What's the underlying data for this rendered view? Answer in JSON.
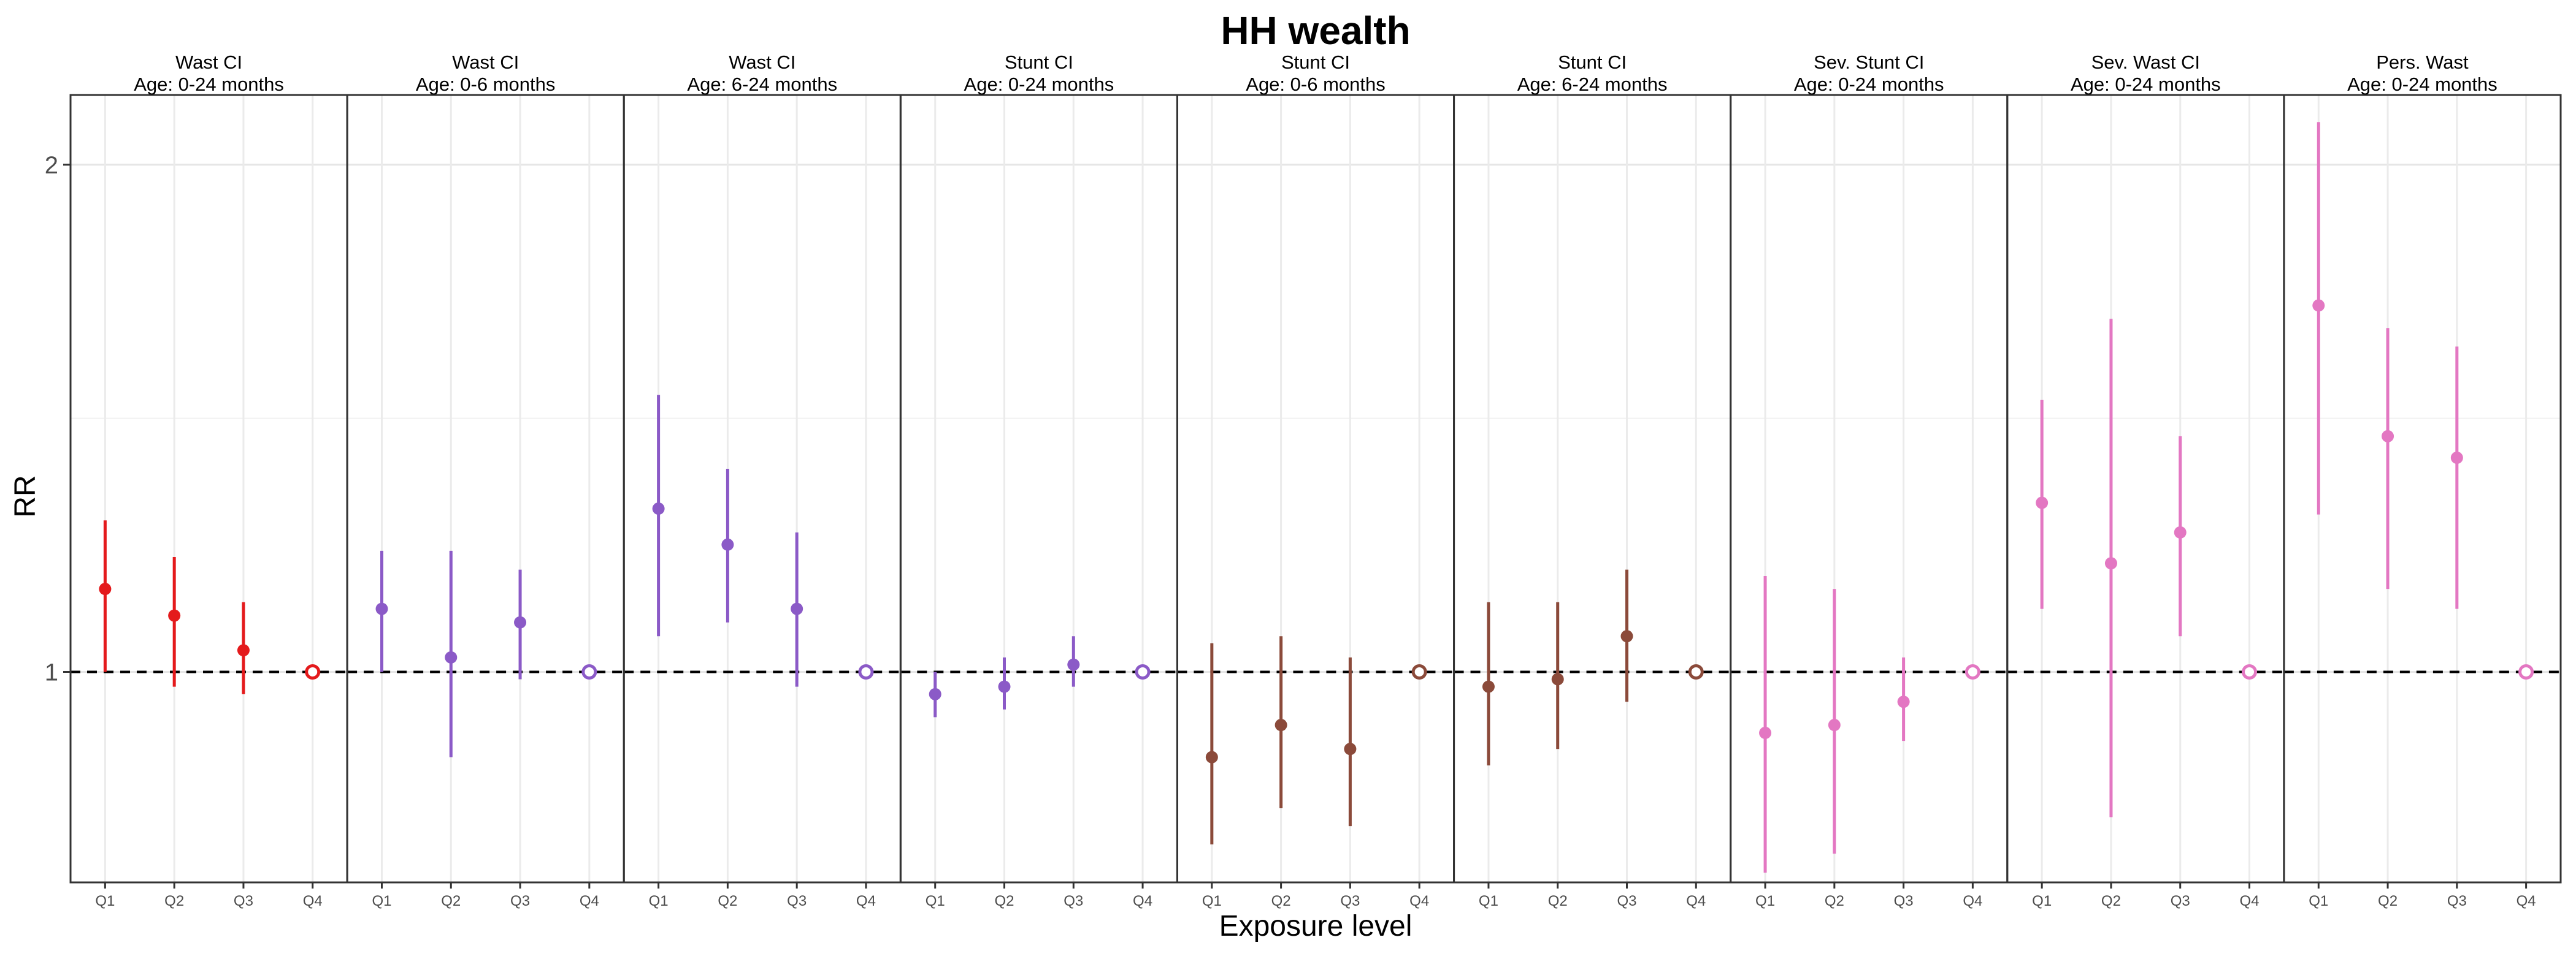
{
  "chart_data": {
    "type": "scatter",
    "title": "HH wealth",
    "xlabel": "Exposure level",
    "ylabel": "RR",
    "scale": "log",
    "ylim": [
      0.75,
      2.2
    ],
    "yticks": [
      1,
      2
    ],
    "ytick_labels": [
      "1",
      "2"
    ],
    "categories": [
      "Q1",
      "Q2",
      "Q3",
      "Q4"
    ],
    "reference_line": 1,
    "reference_category": "Q4",
    "grid": true,
    "panels": [
      {
        "line1": "Wast CI",
        "line2": "Age: 0-24 months",
        "color": "#e41a1c",
        "points": [
          {
            "x": "Q1",
            "rr": 1.12,
            "lower": 1.0,
            "upper": 1.23
          },
          {
            "x": "Q2",
            "rr": 1.08,
            "lower": 0.98,
            "upper": 1.17
          },
          {
            "x": "Q3",
            "rr": 1.03,
            "lower": 0.97,
            "upper": 1.1
          },
          {
            "x": "Q4",
            "rr": 1.0,
            "lower": 1.0,
            "upper": 1.0
          }
        ]
      },
      {
        "line1": "Wast CI",
        "line2": "Age: 0-6 months",
        "color": "#8b5ac7",
        "points": [
          {
            "x": "Q1",
            "rr": 1.09,
            "lower": 1.0,
            "upper": 1.18
          },
          {
            "x": "Q2",
            "rr": 1.02,
            "lower": 0.89,
            "upper": 1.18
          },
          {
            "x": "Q3",
            "rr": 1.07,
            "lower": 0.99,
            "upper": 1.15
          },
          {
            "x": "Q4",
            "rr": 1.0,
            "lower": 1.0,
            "upper": 1.0
          }
        ]
      },
      {
        "line1": "Wast CI",
        "line2": "Age: 6-24 months",
        "color": "#8b5ac7",
        "points": [
          {
            "x": "Q1",
            "rr": 1.25,
            "lower": 1.05,
            "upper": 1.46
          },
          {
            "x": "Q2",
            "rr": 1.19,
            "lower": 1.07,
            "upper": 1.32
          },
          {
            "x": "Q3",
            "rr": 1.09,
            "lower": 0.98,
            "upper": 1.21
          },
          {
            "x": "Q4",
            "rr": 1.0,
            "lower": 1.0,
            "upper": 1.0
          }
        ]
      },
      {
        "line1": "Stunt CI",
        "line2": "Age: 0-24 months",
        "color": "#8b5ac7",
        "points": [
          {
            "x": "Q1",
            "rr": 0.97,
            "lower": 0.94,
            "upper": 1.0
          },
          {
            "x": "Q2",
            "rr": 0.98,
            "lower": 0.95,
            "upper": 1.02
          },
          {
            "x": "Q3",
            "rr": 1.01,
            "lower": 0.98,
            "upper": 1.05
          },
          {
            "x": "Q4",
            "rr": 1.0,
            "lower": 1.0,
            "upper": 1.0
          }
        ]
      },
      {
        "line1": "Stunt CI",
        "line2": "Age: 0-6 months",
        "color": "#8b4a3a",
        "points": [
          {
            "x": "Q1",
            "rr": 0.89,
            "lower": 0.79,
            "upper": 1.04
          },
          {
            "x": "Q2",
            "rr": 0.93,
            "lower": 0.83,
            "upper": 1.05
          },
          {
            "x": "Q3",
            "rr": 0.9,
            "lower": 0.81,
            "upper": 1.02
          },
          {
            "x": "Q4",
            "rr": 1.0,
            "lower": 1.0,
            "upper": 1.0
          }
        ]
      },
      {
        "line1": "Stunt CI",
        "line2": "Age: 6-24 months",
        "color": "#8b4a3a",
        "points": [
          {
            "x": "Q1",
            "rr": 0.98,
            "lower": 0.88,
            "upper": 1.1
          },
          {
            "x": "Q2",
            "rr": 0.99,
            "lower": 0.9,
            "upper": 1.1
          },
          {
            "x": "Q3",
            "rr": 1.05,
            "lower": 0.96,
            "upper": 1.15
          },
          {
            "x": "Q4",
            "rr": 1.0,
            "lower": 1.0,
            "upper": 1.0
          }
        ]
      },
      {
        "line1": "Sev. Stunt CI",
        "line2": "Age: 0-24 months",
        "color": "#e377c2",
        "points": [
          {
            "x": "Q1",
            "rr": 0.92,
            "lower": 0.76,
            "upper": 1.14
          },
          {
            "x": "Q2",
            "rr": 0.93,
            "lower": 0.78,
            "upper": 1.12
          },
          {
            "x": "Q3",
            "rr": 0.96,
            "lower": 0.91,
            "upper": 1.02
          },
          {
            "x": "Q4",
            "rr": 1.0,
            "lower": 1.0,
            "upper": 1.0
          }
        ]
      },
      {
        "line1": "Sev. Wast CI",
        "line2": "Age: 0-24 months",
        "color": "#e377c2",
        "points": [
          {
            "x": "Q1",
            "rr": 1.26,
            "lower": 1.09,
            "upper": 1.45
          },
          {
            "x": "Q2",
            "rr": 1.16,
            "lower": 0.82,
            "upper": 1.62
          },
          {
            "x": "Q3",
            "rr": 1.21,
            "lower": 1.05,
            "upper": 1.38
          },
          {
            "x": "Q4",
            "rr": 1.0,
            "lower": 1.0,
            "upper": 1.0
          }
        ]
      },
      {
        "line1": "Pers. Wast",
        "line2": "Age: 0-24 months",
        "color": "#e377c2",
        "points": [
          {
            "x": "Q1",
            "rr": 1.65,
            "lower": 1.24,
            "upper": 2.12
          },
          {
            "x": "Q2",
            "rr": 1.38,
            "lower": 1.12,
            "upper": 1.6
          },
          {
            "x": "Q3",
            "rr": 1.34,
            "lower": 1.09,
            "upper": 1.56
          },
          {
            "x": "Q4",
            "rr": 1.0,
            "lower": 1.0,
            "upper": 1.0
          }
        ]
      }
    ]
  }
}
